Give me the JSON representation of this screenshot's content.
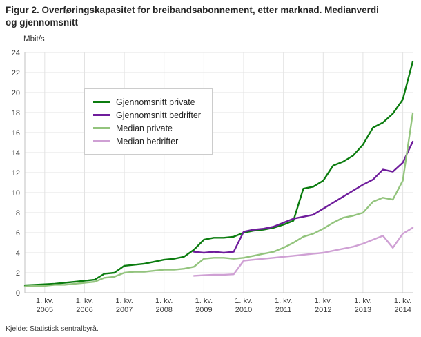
{
  "page": {
    "title": "Figur 2. Overføringskapasitet for breibandsabonnement, etter marknad. Medianverdi og gjennomsnitt",
    "source": "Kjelde: Statistisk sentralbyrå."
  },
  "chart_data": {
    "type": "line",
    "title": "Figur 2. Overføringskapasitet for breibandsabonnement, etter marknad. Medianverdi og gjennomsnitt",
    "xlabel": "",
    "ylabel": "Mbit/s",
    "ylim": [
      0,
      24
    ],
    "yticks": [
      0,
      2,
      4,
      6,
      8,
      10,
      12,
      14,
      16,
      18,
      20,
      22,
      24
    ],
    "grid": true,
    "legend_position": "inset-upper-left",
    "x_unit": "quarter (decimal years)",
    "x": [
      2004.5,
      2004.75,
      2005,
      2005.25,
      2005.5,
      2005.75,
      2006,
      2006.25,
      2006.5,
      2006.75,
      2007,
      2007.25,
      2007.5,
      2007.75,
      2008,
      2008.25,
      2008.5,
      2008.75,
      2009,
      2009.25,
      2009.5,
      2009.75,
      2010,
      2010.25,
      2010.5,
      2010.75,
      2011,
      2011.25,
      2011.5,
      2011.75,
      2012,
      2012.25,
      2012.5,
      2012.75,
      2013,
      2013.25,
      2013.5,
      2013.75,
      2014,
      2014.25
    ],
    "x_ticks": [
      {
        "t": 2005,
        "label_top": "1. kv.",
        "label_bottom": "2005"
      },
      {
        "t": 2006,
        "label_top": "1. kv.",
        "label_bottom": "2006"
      },
      {
        "t": 2007,
        "label_top": "1. kv.",
        "label_bottom": "2007"
      },
      {
        "t": 2008,
        "label_top": "1. kv.",
        "label_bottom": "2008"
      },
      {
        "t": 2009,
        "label_top": "1. kv.",
        "label_bottom": "2009"
      },
      {
        "t": 2010,
        "label_top": "1. kv.",
        "label_bottom": "2010"
      },
      {
        "t": 2011,
        "label_top": "1. kv.",
        "label_bottom": "2011"
      },
      {
        "t": 2012,
        "label_top": "1. kv.",
        "label_bottom": "2012"
      },
      {
        "t": 2013,
        "label_top": "1. kv.",
        "label_bottom": "2013"
      },
      {
        "t": 2014,
        "label_top": "1. kv.",
        "label_bottom": "2014"
      }
    ],
    "series": [
      {
        "name": "Gjennomsnitt private",
        "color": "#0b7c0f",
        "values": [
          0.75,
          0.8,
          0.85,
          0.9,
          1.0,
          1.1,
          1.2,
          1.3,
          1.9,
          2.0,
          2.7,
          2.8,
          2.9,
          3.1,
          3.3,
          3.4,
          3.6,
          4.3,
          5.3,
          5.5,
          5.5,
          5.6,
          6.0,
          6.2,
          6.3,
          6.5,
          6.8,
          7.2,
          10.4,
          10.6,
          11.2,
          12.7,
          13.1,
          13.7,
          14.8,
          16.5,
          17.0,
          17.9,
          19.3,
          23.1
        ]
      },
      {
        "name": "Gjennomsnitt bedrifter",
        "color": "#6f1d9c",
        "values": [
          null,
          null,
          null,
          null,
          null,
          null,
          null,
          null,
          null,
          null,
          null,
          null,
          null,
          null,
          null,
          null,
          null,
          4.1,
          4.0,
          4.1,
          4.0,
          4.1,
          6.1,
          6.3,
          6.4,
          6.6,
          7.0,
          7.4,
          7.6,
          7.8,
          8.4,
          9.0,
          9.6,
          10.2,
          10.8,
          11.3,
          12.3,
          12.1,
          13.0,
          15.1
        ]
      },
      {
        "name": "Median private",
        "color": "#93c47d",
        "values": [
          0.64,
          0.7,
          0.7,
          0.8,
          0.8,
          0.9,
          1.0,
          1.1,
          1.5,
          1.6,
          2.0,
          2.1,
          2.1,
          2.2,
          2.3,
          2.3,
          2.4,
          2.6,
          3.4,
          3.5,
          3.5,
          3.4,
          3.5,
          3.7,
          3.9,
          4.1,
          4.5,
          5.0,
          5.6,
          5.9,
          6.4,
          7.0,
          7.5,
          7.7,
          8.0,
          9.1,
          9.5,
          9.3,
          11.2,
          17.9
        ]
      },
      {
        "name": "Median bedrifter",
        "color": "#cfa0d4",
        "values": [
          null,
          null,
          null,
          null,
          null,
          null,
          null,
          null,
          null,
          null,
          null,
          null,
          null,
          null,
          null,
          null,
          null,
          1.7,
          1.75,
          1.8,
          1.8,
          1.85,
          3.2,
          3.3,
          3.4,
          3.5,
          3.6,
          3.7,
          3.8,
          3.9,
          4.0,
          4.2,
          4.4,
          4.6,
          4.9,
          5.3,
          5.7,
          4.5,
          5.9,
          6.5
        ]
      }
    ]
  }
}
